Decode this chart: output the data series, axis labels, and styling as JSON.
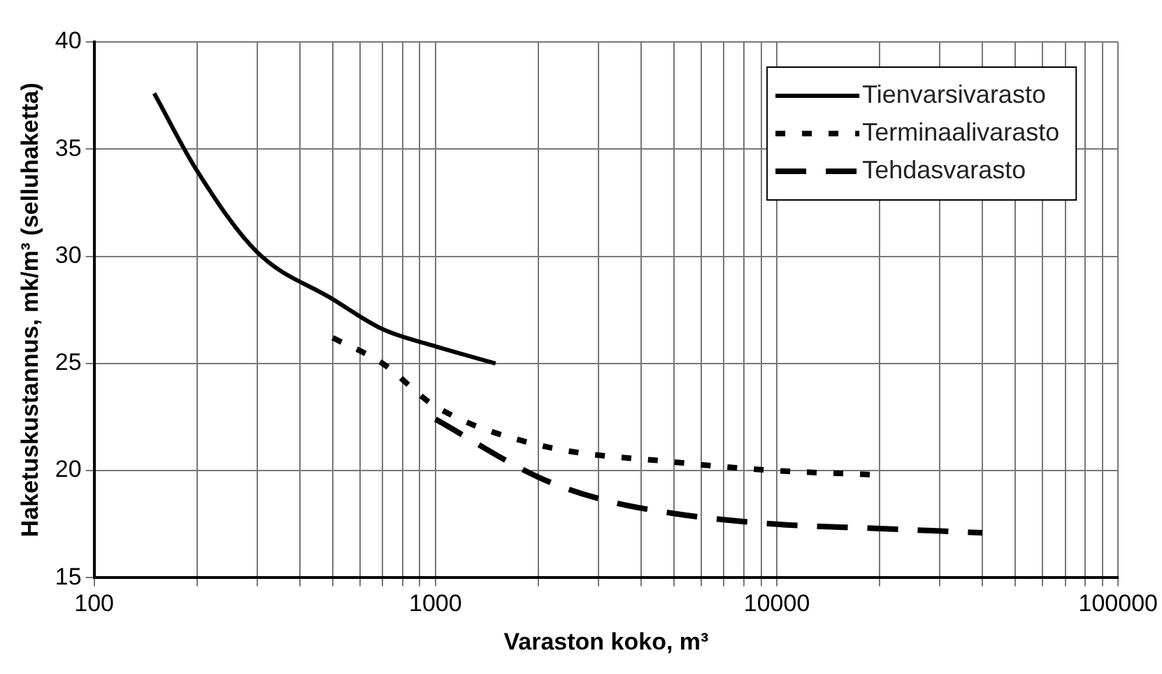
{
  "chart_data": {
    "type": "line",
    "xlabel": "Varaston koko, m³",
    "ylabel": "Haketuskustannus, mk/m³ (selluhaketta)",
    "log": "x",
    "grid": true,
    "legend": "top right",
    "marker": "none",
    "xlim": [
      100,
      100000
    ],
    "ylim": [
      15,
      40
    ],
    "xticks": [
      100,
      {
        "value": 200,
        "label": null
      },
      {
        "value": 300,
        "label": null
      },
      {
        "value": 400,
        "label": null
      },
      {
        "value": 500,
        "label": null
      },
      {
        "value": 600,
        "label": null
      },
      {
        "value": 700,
        "label": null
      },
      {
        "value": 800,
        "label": null
      },
      {
        "value": 900,
        "label": null
      },
      1000,
      {
        "value": 2000,
        "label": null
      },
      {
        "value": 3000,
        "label": null
      },
      {
        "value": 4000,
        "label": null
      },
      {
        "value": 5000,
        "label": null
      },
      {
        "value": 6000,
        "label": null
      },
      {
        "value": 7000,
        "label": null
      },
      {
        "value": 8000,
        "label": null
      },
      {
        "value": 9000,
        "label": null
      },
      10000,
      {
        "value": 20000,
        "label": null
      },
      {
        "value": 30000,
        "label": null
      },
      {
        "value": 40000,
        "label": null
      },
      {
        "value": 50000,
        "label": null
      },
      {
        "value": 60000,
        "label": null
      },
      {
        "value": 70000,
        "label": null
      },
      {
        "value": 80000,
        "label": null
      },
      {
        "value": 90000,
        "label": null
      },
      100000
    ],
    "yticks": [
      15,
      20,
      25,
      30,
      35,
      40
    ],
    "series": [
      {
        "name": "Tienvarsivarasto",
        "color": "#000000",
        "line_style": "solid",
        "x": [
          150,
          200,
          300,
          500,
          700,
          1000,
          1500
        ],
        "values": [
          37.6,
          34.0,
          30.2,
          28.0,
          26.6,
          25.8,
          25.0
        ]
      },
      {
        "name": "Terminaalivarasto",
        "color": "#000000",
        "line_style": "dotted",
        "x": [
          500,
          700,
          1000,
          2000,
          5000,
          10000,
          20000
        ],
        "values": [
          26.2,
          25.0,
          23.0,
          21.2,
          20.4,
          20.0,
          19.8
        ]
      },
      {
        "name": "Tehdasvarasto",
        "color": "#000000",
        "line_style": "dashed",
        "x": [
          1000,
          2000,
          3000,
          5000,
          10000,
          20000,
          40000
        ],
        "values": [
          22.4,
          19.7,
          18.7,
          18.0,
          17.5,
          17.3,
          17.1
        ]
      }
    ]
  }
}
